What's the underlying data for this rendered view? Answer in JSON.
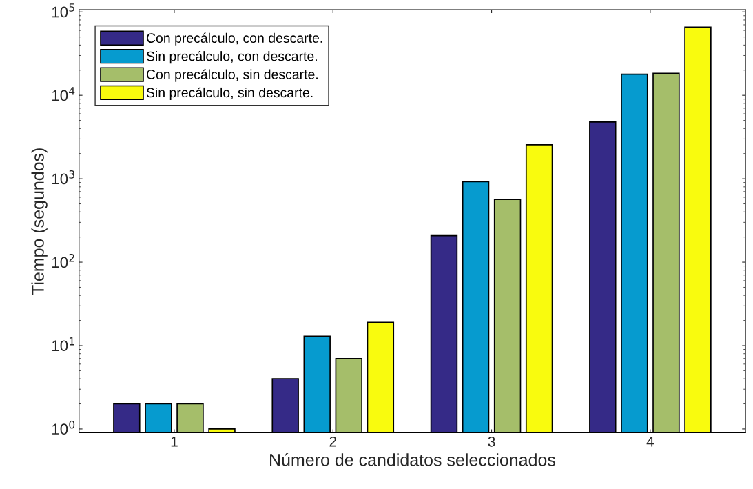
{
  "chart_data": {
    "type": "bar",
    "xlabel": "Número de candidatos seleccionados",
    "ylabel": "Tiempo (segundos)",
    "categories": [
      "1",
      "2",
      "3",
      "4"
    ],
    "series": [
      {
        "name": "Con precálculo, con descarte.",
        "color": "#352a87",
        "values": [
          2,
          4,
          208,
          4780
        ]
      },
      {
        "name": "Sin precálculo, con descarte.",
        "color": "#069bcf",
        "values": [
          2,
          13,
          920,
          17900
        ]
      },
      {
        "name": "Con precálculo, sin descarte.",
        "color": "#a5be6a",
        "values": [
          2,
          7,
          565,
          18300
        ]
      },
      {
        "name": "Sin precálculo, sin descarte.",
        "color": "#f9fb0e",
        "values": [
          1,
          19,
          2550,
          65600
        ]
      }
    ],
    "log": "y",
    "ylim": [
      0.9,
      106000
    ],
    "yticks": [
      {
        "value": 1,
        "label": "10$^{0}$"
      },
      {
        "value": 10,
        "label": "10$^{1}$"
      },
      {
        "value": 100,
        "label": "10$^{2}$"
      },
      {
        "value": 1000,
        "label": "10$^{3}$"
      },
      {
        "value": 10000,
        "label": "10$^{4}$"
      },
      {
        "value": 100000,
        "label": "10$^{5}$"
      }
    ],
    "grid": false,
    "legend": "top left"
  }
}
